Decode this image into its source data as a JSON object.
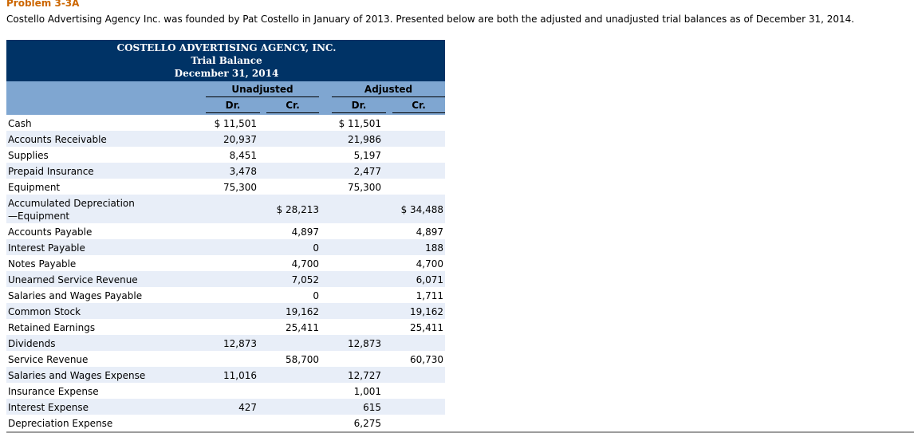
{
  "problem_title": "Problem 3-3A",
  "intro": "Costello Advertising Agency Inc. was founded by Pat Costello in January of 2013. Presented below are both the adjusted and unadjusted trial balances as of December 31, 2014.",
  "trial_balance": {
    "company": "COSTELLO ADVERTISING AGENCY, INC.",
    "statement": "Trial Balance",
    "date": "December 31, 2014",
    "group_unadjusted": "Unadjusted",
    "group_adjusted": "Adjusted",
    "dr_label": "Dr.",
    "cr_label": "Cr.",
    "rows": [
      {
        "account": "Cash",
        "unadj_dr": "$ 11,501",
        "unadj_cr": "",
        "adj_dr": "$ 11,501",
        "adj_cr": ""
      },
      {
        "account": "Accounts Receivable",
        "unadj_dr": "20,937",
        "unadj_cr": "",
        "adj_dr": "21,986",
        "adj_cr": ""
      },
      {
        "account": "Supplies",
        "unadj_dr": "8,451",
        "unadj_cr": "",
        "adj_dr": "5,197",
        "adj_cr": ""
      },
      {
        "account": "Prepaid Insurance",
        "unadj_dr": "3,478",
        "unadj_cr": "",
        "adj_dr": "2,477",
        "adj_cr": ""
      },
      {
        "account": "Equipment",
        "unadj_dr": "75,300",
        "unadj_cr": "",
        "adj_dr": "75,300",
        "adj_cr": ""
      },
      {
        "account": "Accumulated Depreciation",
        "account_line2": "—Equipment",
        "unadj_dr": "",
        "unadj_cr": "$ 28,213",
        "adj_dr": "",
        "adj_cr": "$ 34,488"
      },
      {
        "account": "Accounts Payable",
        "unadj_dr": "",
        "unadj_cr": "4,897",
        "adj_dr": "",
        "adj_cr": "4,897"
      },
      {
        "account": "Interest Payable",
        "unadj_dr": "",
        "unadj_cr": "0",
        "adj_dr": "",
        "adj_cr": "188"
      },
      {
        "account": "Notes Payable",
        "unadj_dr": "",
        "unadj_cr": "4,700",
        "adj_dr": "",
        "adj_cr": "4,700"
      },
      {
        "account": "Unearned Service Revenue",
        "unadj_dr": "",
        "unadj_cr": "7,052",
        "adj_dr": "",
        "adj_cr": "6,071"
      },
      {
        "account": "Salaries and Wages Payable",
        "unadj_dr": "",
        "unadj_cr": "0",
        "adj_dr": "",
        "adj_cr": "1,711"
      },
      {
        "account": "Common Stock",
        "unadj_dr": "",
        "unadj_cr": "19,162",
        "adj_dr": "",
        "adj_cr": "19,162"
      },
      {
        "account": "Retained Earnings",
        "unadj_dr": "",
        "unadj_cr": "25,411",
        "adj_dr": "",
        "adj_cr": "25,411"
      },
      {
        "account": "Dividends",
        "unadj_dr": "12,873",
        "unadj_cr": "",
        "adj_dr": "12,873",
        "adj_cr": ""
      },
      {
        "account": "Service Revenue",
        "unadj_dr": "",
        "unadj_cr": "58,700",
        "adj_dr": "",
        "adj_cr": "60,730"
      },
      {
        "account": "Salaries and Wages Expense",
        "unadj_dr": "11,016",
        "unadj_cr": "",
        "adj_dr": "12,727",
        "adj_cr": ""
      },
      {
        "account": "Insurance Expense",
        "unadj_dr": "",
        "unadj_cr": "",
        "adj_dr": "1,001",
        "adj_cr": ""
      },
      {
        "account": "Interest Expense",
        "unadj_dr": "427",
        "unadj_cr": "",
        "adj_dr": "615",
        "adj_cr": ""
      },
      {
        "account": "Depreciation Expense",
        "unadj_dr": "",
        "unadj_cr": "",
        "adj_dr": "6,275",
        "adj_cr": ""
      }
    ]
  },
  "colors": {
    "header_bg": "#003366",
    "colhead_bg": "#7fa6d1",
    "row_shade": "#e8eef8",
    "problem_title": "#cc6600"
  }
}
